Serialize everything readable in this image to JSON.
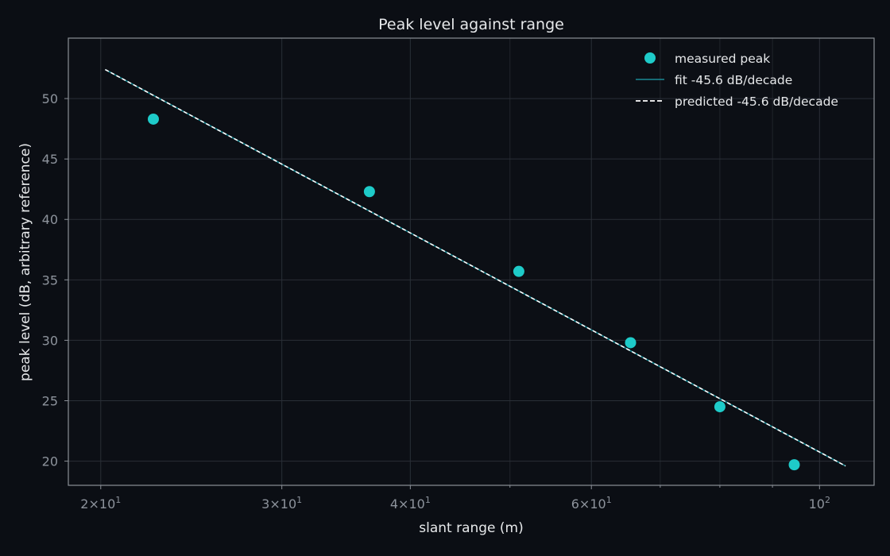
{
  "chart_data": {
    "type": "scatter",
    "title": "Peak level against range",
    "xlabel": "slant range (m)",
    "ylabel": "peak level (dB, arbitrary reference)",
    "xscale": "log",
    "xlim": [
      18.6,
      113
    ],
    "ylim": [
      18,
      55
    ],
    "grid": true,
    "legend_position": "top-right",
    "x_ticks": [
      {
        "value": 20,
        "mantissa": "2",
        "exponent": "1"
      },
      {
        "value": 30,
        "mantissa": "3",
        "exponent": "1"
      },
      {
        "value": 40,
        "mantissa": "4",
        "exponent": "1"
      },
      {
        "value": 60,
        "mantissa": "6",
        "exponent": "1"
      },
      {
        "value": 100,
        "mantissa": "",
        "exponent": "2"
      }
    ],
    "x_minor_grid": [
      50,
      70,
      80,
      90
    ],
    "y_ticks": [
      20,
      25,
      30,
      35,
      40,
      45,
      50
    ],
    "series": [
      {
        "name": "measured peak",
        "kind": "scatter",
        "color": "#1ecbc9",
        "x": [
          22.5,
          36.5,
          51.0,
          65.5,
          80.0,
          94.5
        ],
        "y": [
          48.3,
          42.3,
          35.7,
          29.8,
          24.5,
          19.7
        ]
      },
      {
        "name": "fit -45.6 dB/decade",
        "kind": "line",
        "color": "#1a8a95",
        "x": [
          20.2,
          106.0
        ],
        "y": [
          52.4,
          19.6
        ]
      },
      {
        "name": "predicted -45.6 dB/decade",
        "kind": "dashed-line",
        "color": "#ffffff",
        "x": [
          20.2,
          106.0
        ],
        "y": [
          52.4,
          19.6
        ]
      }
    ]
  }
}
